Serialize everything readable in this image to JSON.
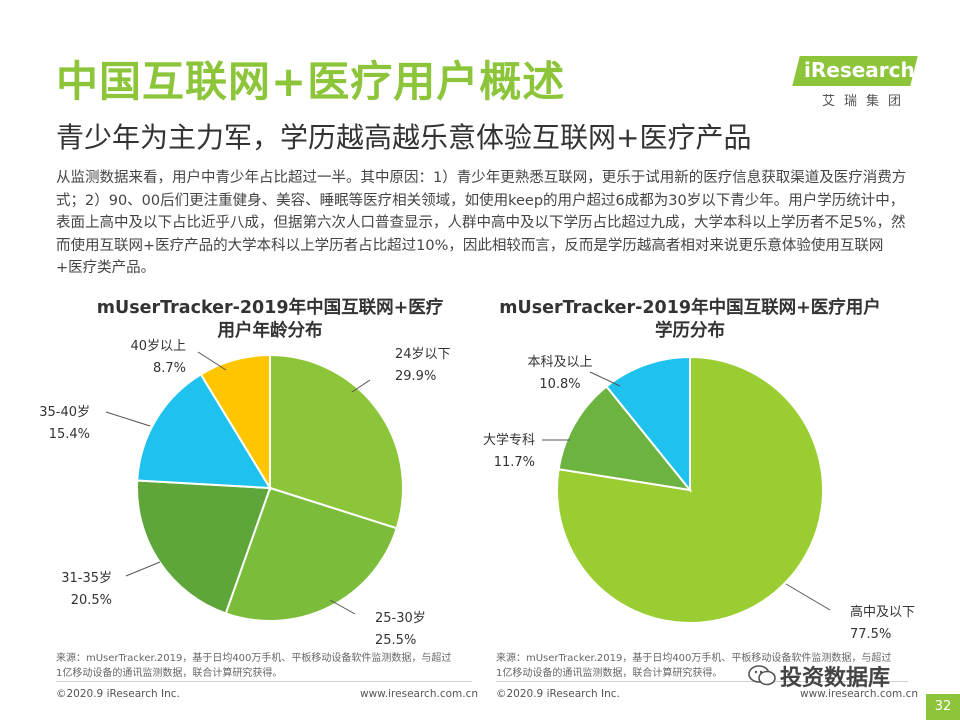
{
  "header": {
    "title": "中国互联网+医疗用户概述",
    "subtitle": "青少年为主力军，学历越高越乐意体验互联网+医疗产品"
  },
  "logo": {
    "brand": "iResearch",
    "sub": "艾瑞集团"
  },
  "intro": "从监测数据来看，用户中青少年占比超过一半。其中原因：1）青少年更熟悉互联网，更乐于试用新的医疗信息获取渠道及医疗消费方式；2）90、00后们更注重健身、美容、睡眠等医疗相关领域，如使用keep的用户超过6成都为30岁以下青少年。用户学历统计中，表面上高中及以下占比近乎八成，但据第六次人口普查显示，人群中高中及以下学历占比超过九成，大学本科以上学历者不足5%，然而使用互联网+医疗产品的大学本科以上学历者占比超过10%，因此相较而言，反而是学历越高者相对来说更乐意体验使用互联网+医疗类产品。",
  "colors": {
    "accent": "#8cc43a"
  },
  "chart_data": [
    {
      "type": "pie",
      "title": "mUserTracker-2019年中国互联网+医疗用户年龄分布",
      "title_lines": [
        "mUserTracker-2019年中国互联网+医疗",
        "用户年龄分布"
      ],
      "slices": [
        {
          "label": "24岁以下",
          "value": 29.9,
          "display": "29.9%",
          "color": "#8cc43a"
        },
        {
          "label": "25-30岁",
          "value": 25.5,
          "display": "25.5%",
          "color": "#7bbd3a"
        },
        {
          "label": "31-35岁",
          "value": 20.5,
          "display": "20.5%",
          "color": "#5fa63a"
        },
        {
          "label": "35-40岁",
          "value": 15.4,
          "display": "15.4%",
          "color": "#1fc2ee"
        },
        {
          "label": "40岁以上",
          "value": 8.7,
          "display": "8.7%",
          "color": "#ffc600"
        }
      ],
      "start": "12 o'clock",
      "direction": "clockwise"
    },
    {
      "type": "pie",
      "title": "mUserTracker-2019年中国互联网+医疗用户学历分布",
      "title_lines": [
        "mUserTracker-2019年中国互联网+医疗用户",
        "学历分布"
      ],
      "slices": [
        {
          "label": "高中及以下",
          "value": 77.5,
          "display": "77.5%",
          "color": "#9acd32"
        },
        {
          "label": "大学专科",
          "value": 11.7,
          "display": "11.7%",
          "color": "#6db33f"
        },
        {
          "label": "本科及以上",
          "value": 10.8,
          "display": "10.8%",
          "color": "#1fc2ee"
        }
      ],
      "start": "12 o'clock",
      "direction": "clockwise"
    }
  ],
  "source": {
    "line1": "来源：mUserTracker.2019，基于日均400万手机、平板移动设备软件监测数据，与超过",
    "line2": "1亿移动设备的通讯监测数据，联合计算研究获得。"
  },
  "footer": {
    "copyright": "©2020.9 iResearch Inc.",
    "url": "www.iresearch.com.cn",
    "watermark": "投资数据库",
    "page": "32"
  }
}
